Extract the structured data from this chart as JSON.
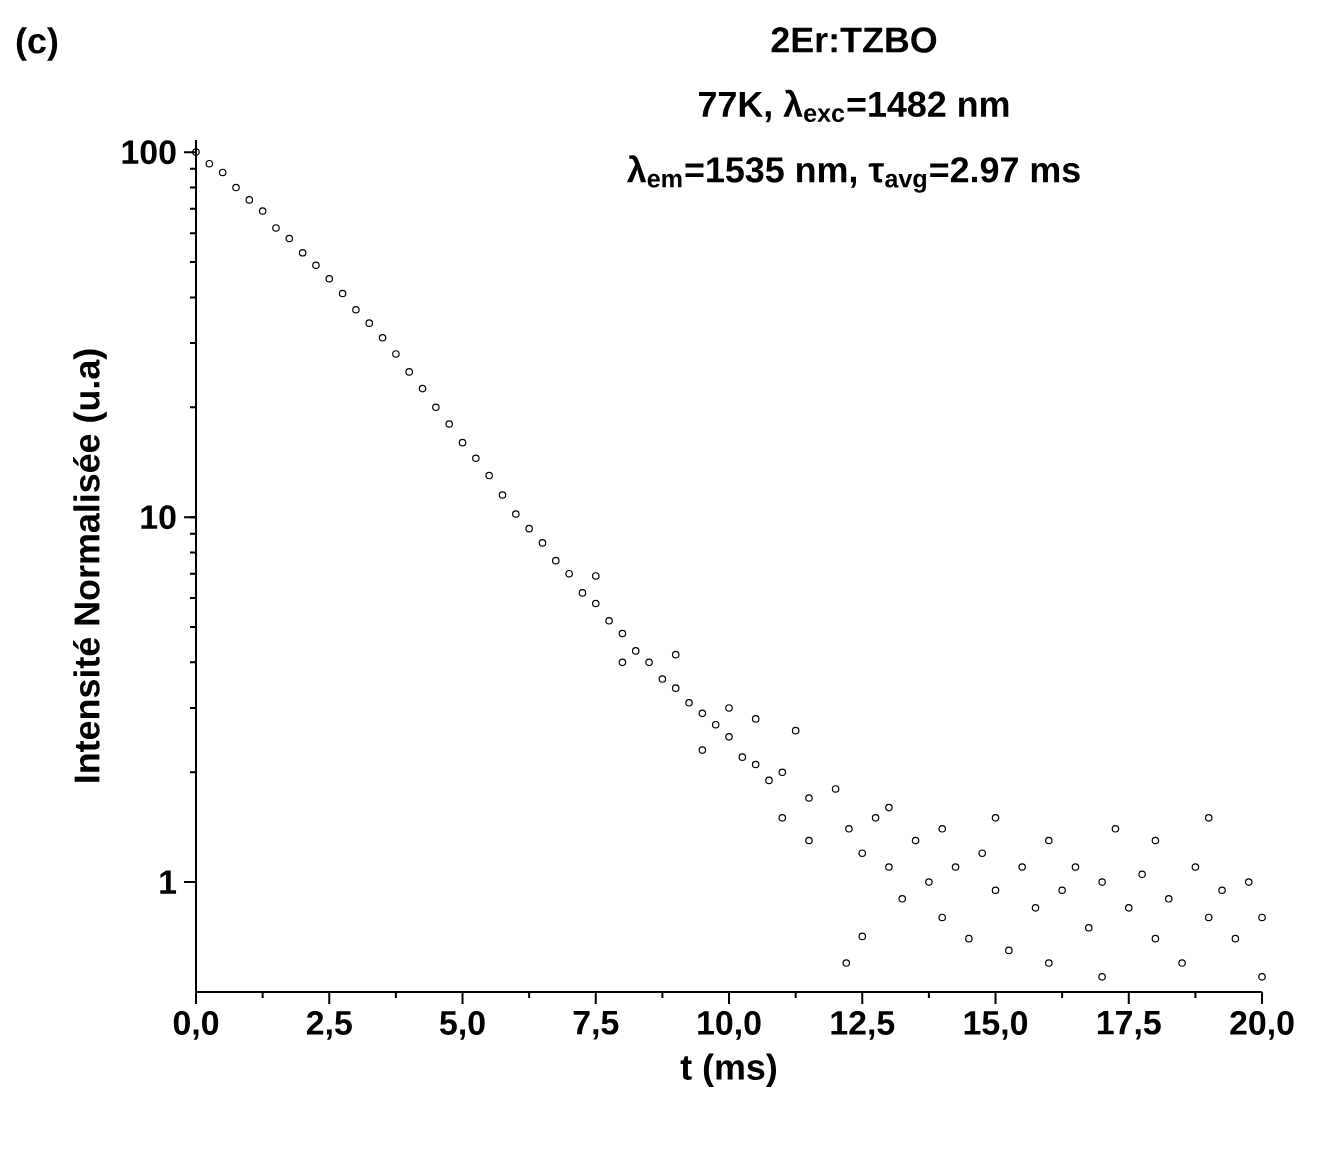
{
  "chart_data": {
    "type": "scatter",
    "title": "2Er:TZBO",
    "subtitle": "77K, λ$_{exc}$=1482 nm",
    "annotations": [
      "(c)",
      "λ$_{em}$=1535 nm, τ$_{avg}$=2.97 ms"
    ],
    "xlabel": "t (ms)",
    "ylabel": "Intensité Normalisée (u.a)",
    "log": "y",
    "marker": "circle",
    "grid": false,
    "xlim": [
      0,
      20
    ],
    "ylim": [
      0.5,
      108
    ],
    "xticks": [
      {
        "value": 0,
        "label": "0,0"
      },
      {
        "value": 2.5,
        "label": "2,5"
      },
      {
        "value": 5,
        "label": "5,0"
      },
      {
        "value": 7.5,
        "label": "7,5"
      },
      {
        "value": 10,
        "label": "10,0"
      },
      {
        "value": 12.5,
        "label": "12,5"
      },
      {
        "value": 15,
        "label": "15,0"
      },
      {
        "value": 17.5,
        "label": "17,5"
      },
      {
        "value": 20,
        "label": "20,0"
      }
    ],
    "yticks": [
      1,
      10,
      100
    ],
    "series": [
      {
        "color": "#000000",
        "x": [
          0,
          0.25,
          0.5,
          0.75,
          1,
          1.25,
          1.5,
          1.75,
          2,
          2.25,
          2.5,
          2.75,
          3,
          3.25,
          3.5,
          3.75,
          4,
          4.25,
          4.5,
          4.75,
          5,
          5.25,
          5.5,
          5.75,
          6,
          6.25,
          6.5,
          6.75,
          7,
          7.25,
          7.5,
          7.75,
          8,
          8.25,
          8.5,
          8.75,
          9,
          9.25,
          9.5,
          9.75,
          10,
          7.5,
          8,
          9,
          9.5,
          10,
          10.25,
          10.5,
          10.5,
          10.75,
          11,
          11,
          11.25,
          11.5,
          11.5,
          12.2,
          12.5,
          12,
          12.25,
          12.5,
          12.75,
          13,
          13,
          13.25,
          13.5,
          13.75,
          14,
          14,
          14.25,
          14.5,
          14.75,
          15,
          15,
          15.25,
          15.5,
          15.75,
          16,
          16,
          16.25,
          16.5,
          16.75,
          17,
          17,
          17.25,
          17.5,
          17.75,
          18,
          18,
          18.25,
          18.5,
          18.75,
          19,
          19,
          19.25,
          19.5,
          19.75,
          20,
          20
        ],
        "values": [
          100,
          93,
          88,
          80,
          74,
          69,
          62,
          58,
          53,
          49,
          45,
          41,
          37,
          34,
          31,
          28,
          25,
          22.5,
          20,
          18,
          16,
          14.5,
          13,
          11.5,
          10.2,
          9.3,
          8.5,
          7.6,
          7.0,
          6.2,
          5.8,
          5.2,
          4.8,
          4.3,
          4.0,
          3.6,
          3.4,
          3.1,
          2.9,
          2.7,
          2.5,
          6.9,
          4.0,
          4.2,
          2.3,
          3.0,
          2.2,
          2.1,
          2.8,
          1.9,
          2.0,
          1.5,
          2.6,
          1.7,
          1.3,
          0.6,
          0.71,
          1.8,
          1.4,
          1.2,
          1.5,
          1.1,
          1.6,
          0.9,
          1.3,
          1.0,
          0.8,
          1.4,
          1.1,
          0.7,
          1.2,
          0.95,
          1.5,
          0.65,
          1.1,
          0.85,
          1.3,
          0.6,
          0.95,
          1.1,
          0.75,
          1.0,
          0.55,
          1.4,
          0.85,
          1.05,
          0.7,
          1.3,
          0.9,
          0.6,
          1.1,
          0.8,
          1.5,
          0.95,
          0.7,
          1.0,
          0.8,
          0.55
        ]
      }
    ]
  }
}
